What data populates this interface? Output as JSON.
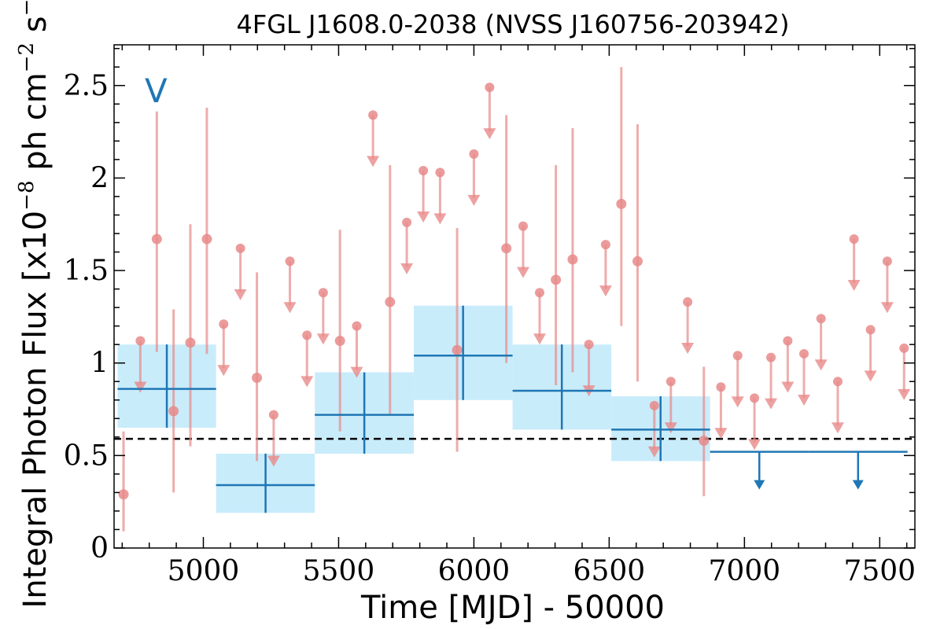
{
  "chart_data": {
    "type": "scatter",
    "title": "4FGL J1608.0-2038 (NVSS J160756-203942)",
    "xlabel": "Time [MJD] - 50000",
    "ylabel": {
      "main": "Integral Photon Flux [x10",
      "exp1": "−8",
      "mid": " ph cm",
      "exp2": "−2",
      "mid2": " s",
      "exp3": "−1",
      "end": "]"
    },
    "annotation": "V",
    "xlim": [
      4670,
      7630
    ],
    "ylim": [
      0,
      2.72
    ],
    "x_ticks": [
      5000,
      5500,
      6000,
      6500,
      7000,
      7500
    ],
    "x_tick_labels": [
      "5000",
      "5500",
      "6000",
      "6500",
      "7000",
      "7500"
    ],
    "y_ticks": [
      0,
      0.5,
      1,
      1.5,
      2,
      2.5
    ],
    "y_tick_labels": [
      "0",
      "0.5",
      "1",
      "1.5",
      "2",
      "2.5"
    ],
    "reference_line": 0.59,
    "colors": {
      "fine_points": "#e88a8a",
      "coarse_bins": "#1f77b4",
      "coarse_fill": "#c9ecfb",
      "reference_line": "#000000"
    },
    "fine_bins": {
      "detections": [
        {
          "x": 4705,
          "y": 0.29,
          "lo": 0.09,
          "hi": 0.63
        },
        {
          "x": 4828,
          "y": 1.67,
          "lo": 1.06,
          "hi": 2.36
        },
        {
          "x": 4890,
          "y": 0.74,
          "lo": 0.3,
          "hi": 1.29
        },
        {
          "x": 4952,
          "y": 1.11,
          "lo": 0.55,
          "hi": 1.75
        },
        {
          "x": 5013,
          "y": 1.67,
          "lo": 1.05,
          "hi": 2.38
        },
        {
          "x": 5198,
          "y": 0.92,
          "lo": 0.47,
          "hi": 1.49
        },
        {
          "x": 5505,
          "y": 1.12,
          "lo": 0.63,
          "hi": 1.72
        },
        {
          "x": 5690,
          "y": 1.33,
          "lo": 0.72,
          "hi": 2.07
        },
        {
          "x": 5938,
          "y": 1.07,
          "lo": 0.52,
          "hi": 1.73
        },
        {
          "x": 6120,
          "y": 1.62,
          "lo": 1.0,
          "hi": 2.34
        },
        {
          "x": 6303,
          "y": 1.45,
          "lo": 0.88,
          "hi": 2.07
        },
        {
          "x": 6365,
          "y": 1.56,
          "lo": 0.95,
          "hi": 2.27
        },
        {
          "x": 6545,
          "y": 1.86,
          "lo": 1.2,
          "hi": 2.6
        },
        {
          "x": 6605,
          "y": 1.55,
          "lo": 0.9,
          "hi": 2.29
        },
        {
          "x": 6850,
          "y": 0.58,
          "lo": 0.28,
          "hi": 0.98
        }
      ],
      "upper_limits": [
        {
          "x": 4767,
          "y": 1.12
        },
        {
          "x": 5075,
          "y": 1.21
        },
        {
          "x": 5137,
          "y": 1.62
        },
        {
          "x": 5260,
          "y": 0.72
        },
        {
          "x": 5320,
          "y": 1.55
        },
        {
          "x": 5383,
          "y": 1.15
        },
        {
          "x": 5443,
          "y": 1.38
        },
        {
          "x": 5567,
          "y": 1.2
        },
        {
          "x": 5627,
          "y": 2.34
        },
        {
          "x": 5752,
          "y": 1.76
        },
        {
          "x": 5813,
          "y": 2.04
        },
        {
          "x": 5875,
          "y": 2.03
        },
        {
          "x": 6058,
          "y": 2.49
        },
        {
          "x": 6000,
          "y": 2.13
        },
        {
          "x": 6182,
          "y": 1.74
        },
        {
          "x": 6243,
          "y": 1.38
        },
        {
          "x": 6425,
          "y": 1.1
        },
        {
          "x": 6487,
          "y": 1.64
        },
        {
          "x": 6667,
          "y": 0.77
        },
        {
          "x": 6728,
          "y": 0.9
        },
        {
          "x": 6790,
          "y": 1.33
        },
        {
          "x": 6913,
          "y": 0.87
        },
        {
          "x": 6975,
          "y": 1.04
        },
        {
          "x": 7037,
          "y": 0.81
        },
        {
          "x": 7098,
          "y": 1.03
        },
        {
          "x": 7160,
          "y": 1.12
        },
        {
          "x": 7220,
          "y": 1.05
        },
        {
          "x": 7283,
          "y": 1.24
        },
        {
          "x": 7345,
          "y": 0.9
        },
        {
          "x": 7405,
          "y": 1.67
        },
        {
          "x": 7466,
          "y": 1.18
        },
        {
          "x": 7528,
          "y": 1.55
        },
        {
          "x": 7590,
          "y": 1.08
        }
      ]
    },
    "coarse_bins": {
      "detections": [
        {
          "x": 4865,
          "x0": 4683,
          "x1": 5047,
          "y": 0.86,
          "lo": 0.65,
          "hi": 1.1
        },
        {
          "x": 5230,
          "x0": 5047,
          "x1": 5412,
          "y": 0.34,
          "lo": 0.19,
          "hi": 0.51
        },
        {
          "x": 5595,
          "x0": 5412,
          "x1": 5778,
          "y": 0.72,
          "lo": 0.51,
          "hi": 0.95
        },
        {
          "x": 5960,
          "x0": 5778,
          "x1": 6143,
          "y": 1.04,
          "lo": 0.8,
          "hi": 1.31
        },
        {
          "x": 6325,
          "x0": 6143,
          "x1": 6508,
          "y": 0.85,
          "lo": 0.64,
          "hi": 1.1
        },
        {
          "x": 6690,
          "x0": 6508,
          "x1": 6873,
          "y": 0.64,
          "lo": 0.47,
          "hi": 0.82
        }
      ],
      "upper_limits": [
        {
          "x": 7055,
          "x0": 6873,
          "x1": 7238,
          "y": 0.52
        },
        {
          "x": 7420,
          "x0": 7238,
          "x1": 7603,
          "y": 0.52
        }
      ]
    }
  }
}
